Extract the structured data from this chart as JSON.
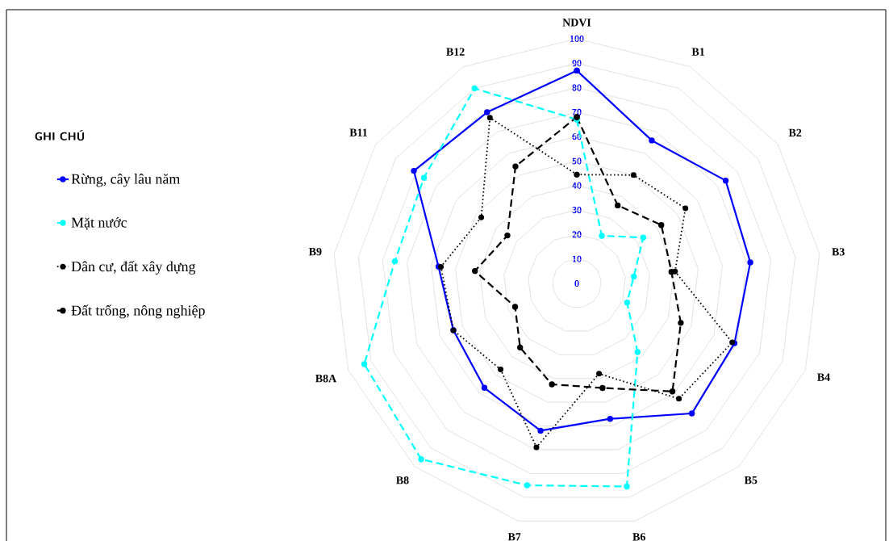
{
  "chart_data": {
    "type": "radar",
    "legend_title": "**GHI CHÚ**",
    "categories": [
      "NDVI",
      "B1",
      "B2",
      "B3",
      "B4",
      "B5",
      "B6",
      "B7",
      "B8",
      "B8A",
      "B9",
      "B11",
      "B12"
    ],
    "ylim": [
      0,
      100
    ],
    "yticks": [
      0,
      10,
      20,
      30,
      40,
      50,
      60,
      70,
      80,
      90,
      100
    ],
    "grid": true,
    "legend": "left",
    "marker": "circle",
    "series": [
      {
        "name": "Rừng, cây lâu năm",
        "color": "#0000ff",
        "line_style": "solid",
        "values": [
          87,
          66,
          74,
          71.5,
          69,
          71,
          57,
          62,
          57,
          54,
          57,
          81,
          79
        ]
      },
      {
        "name": "Mặt nước",
        "color": "#00ffff",
        "line_style": "dashed",
        "values": [
          67,
          22,
          33,
          23.5,
          22,
          37.5,
          85.5,
          85,
          96,
          93,
          75,
          76,
          90
        ]
      },
      {
        "name": "Dân cư, đất xây dựng",
        "color": "#000000",
        "line_style": "dotted",
        "values": [
          44.5,
          50,
          54,
          40.5,
          68,
          63,
          38,
          69,
          47,
          54,
          56,
          47.5,
          76.5
        ]
      },
      {
        "name": "Đất trống, nông nghiệp",
        "color": "#000000",
        "line_style": "dashed",
        "values": [
          68,
          36,
          42,
          39,
          45.5,
          59,
          44,
          42.5,
          35,
          27,
          42,
          34.5,
          54
        ]
      }
    ]
  }
}
